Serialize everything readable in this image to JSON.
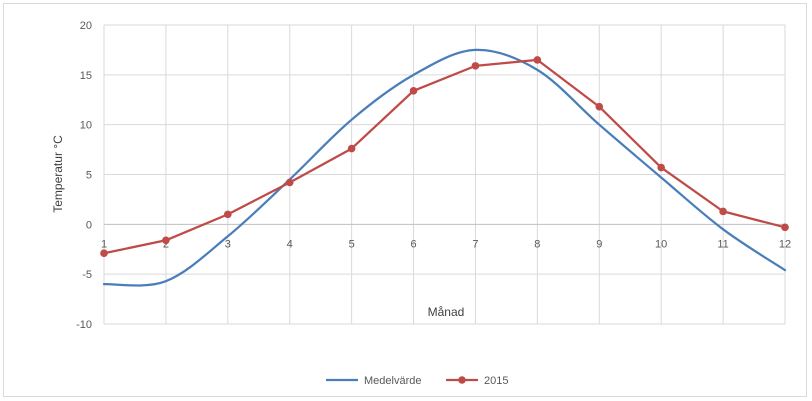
{
  "chart_data": {
    "type": "line",
    "title": "",
    "xlabel": "Månad",
    "ylabel": "Temperatur °C",
    "x": [
      1,
      2,
      3,
      4,
      5,
      6,
      7,
      8,
      9,
      10,
      11,
      12
    ],
    "xlim": [
      1,
      12
    ],
    "ylim": [
      -10,
      20
    ],
    "yticks": [
      -10,
      -5,
      0,
      5,
      10,
      15,
      20
    ],
    "grid": true,
    "legend_position": "bottom",
    "series": [
      {
        "name": "Medelvärde",
        "color": "#4a7ebb",
        "marker": "none",
        "smooth": true,
        "values": [
          -6.0,
          -5.7,
          -1.2,
          4.5,
          10.5,
          15.0,
          17.5,
          15.5,
          10.0,
          4.7,
          -0.5,
          -4.6
        ]
      },
      {
        "name": "2015",
        "color": "#be4b48",
        "marker": "circle",
        "smooth": false,
        "values": [
          -2.9,
          -1.6,
          1.0,
          4.2,
          7.6,
          13.4,
          15.9,
          16.5,
          11.8,
          5.7,
          1.3,
          -0.3
        ]
      }
    ]
  }
}
